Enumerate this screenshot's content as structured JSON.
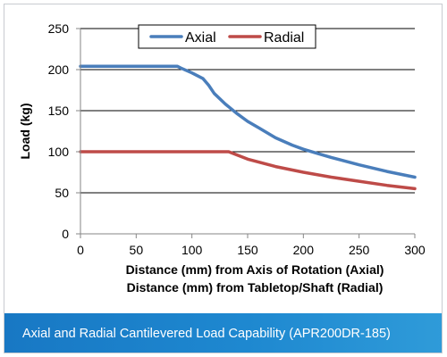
{
  "chart_data": {
    "type": "line",
    "title": "",
    "xlabel_line1": "Distance (mm) from Axis of Rotation (Axial)",
    "xlabel_line2": "Distance (mm) from Tabletop/Shaft (Radial)",
    "ylabel": "Load (kg)",
    "xlim": [
      0,
      300
    ],
    "ylim": [
      0,
      250
    ],
    "xticks": [
      0,
      50,
      100,
      150,
      200,
      250,
      300
    ],
    "yticks": [
      0,
      50,
      100,
      150,
      200,
      250
    ],
    "grid": "horizontal",
    "legend_position": "top-center",
    "series": [
      {
        "name": "Axial",
        "color": "#4a7ebb",
        "points": [
          [
            0,
            204
          ],
          [
            50,
            204
          ],
          [
            87,
            204
          ],
          [
            90,
            202
          ],
          [
            100,
            196
          ],
          [
            110,
            189
          ],
          [
            115,
            181
          ],
          [
            120,
            171
          ],
          [
            130,
            158
          ],
          [
            140,
            147
          ],
          [
            150,
            137
          ],
          [
            160,
            129
          ],
          [
            175,
            117
          ],
          [
            190,
            108
          ],
          [
            200,
            103
          ],
          [
            210,
            99
          ],
          [
            225,
            93
          ],
          [
            250,
            84
          ],
          [
            275,
            76
          ],
          [
            300,
            69
          ]
        ]
      },
      {
        "name": "Radial",
        "color": "#be4b48",
        "points": [
          [
            0,
            100
          ],
          [
            50,
            100
          ],
          [
            100,
            100
          ],
          [
            133,
            100
          ],
          [
            150,
            91
          ],
          [
            175,
            82
          ],
          [
            200,
            75
          ],
          [
            225,
            69
          ],
          [
            250,
            64
          ],
          [
            275,
            59
          ],
          [
            300,
            55
          ]
        ]
      }
    ]
  },
  "footer": {
    "caption": "Axial and Radial Cantilevered Load Capability (APR200DR-185)",
    "background": "#1e88d0"
  }
}
